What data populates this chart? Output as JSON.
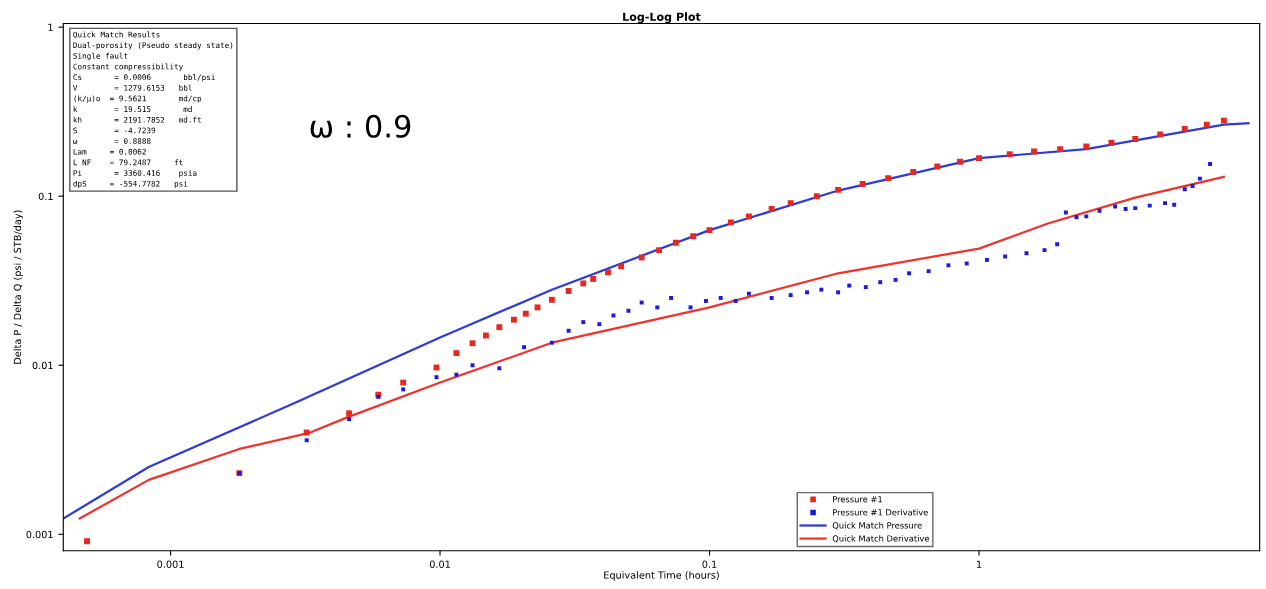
{
  "chart_data": {
    "type": "line",
    "title": "Log-Log Plot",
    "xlabel": "Equivalent Time (hours)",
    "ylabel": "Delta P / Delta Q (psi / STB/day)",
    "log": "xy",
    "xlim": [
      0.0004,
      11
    ],
    "ylim": [
      0.0008,
      1.05
    ],
    "xticks": [
      0.001,
      0.01,
      0.1,
      1
    ],
    "yticks": [
      0.001,
      0.01,
      0.1,
      1
    ],
    "grid": false,
    "legend": "bottom right",
    "series": [
      {
        "name": "Pressure #1",
        "type": "scatter",
        "marker": "square",
        "color": "#e8281e",
        "x": [
          0.00049,
          0.0018,
          0.0032,
          0.0046,
          0.0059,
          0.0073,
          0.0097,
          0.0115,
          0.0132,
          0.0148,
          0.0166,
          0.0188,
          0.0208,
          0.023,
          0.026,
          0.03,
          0.034,
          0.037,
          0.042,
          0.047,
          0.056,
          0.065,
          0.075,
          0.087,
          0.1,
          0.12,
          0.14,
          0.17,
          0.2,
          0.25,
          0.3,
          0.37,
          0.46,
          0.57,
          0.7,
          0.85,
          1,
          1.3,
          1.6,
          2,
          2.5,
          3.1,
          3.8,
          4.7,
          5.8,
          7,
          8.1
        ],
        "values": [
          0.00091,
          0.0023,
          0.004,
          0.0052,
          0.0067,
          0.0079,
          0.0097,
          0.0118,
          0.0135,
          0.015,
          0.0168,
          0.0186,
          0.0202,
          0.022,
          0.0244,
          0.0275,
          0.0305,
          0.0324,
          0.0355,
          0.0385,
          0.0434,
          0.048,
          0.053,
          0.058,
          0.063,
          0.07,
          0.076,
          0.084,
          0.091,
          0.1,
          0.109,
          0.118,
          0.128,
          0.139,
          0.15,
          0.16,
          0.168,
          0.177,
          0.184,
          0.19,
          0.197,
          0.207,
          0.218,
          0.232,
          0.25,
          0.265,
          0.28
        ]
      },
      {
        "name": "Pressure #1 Derivative",
        "type": "scatter",
        "marker": "square",
        "color": "#1a1ae0",
        "x": [
          0.0018,
          0.0032,
          0.0046,
          0.0059,
          0.0073,
          0.0097,
          0.0115,
          0.0132,
          0.0166,
          0.0205,
          0.026,
          0.03,
          0.034,
          0.039,
          0.044,
          0.05,
          0.056,
          0.064,
          0.072,
          0.085,
          0.097,
          0.11,
          0.125,
          0.14,
          0.17,
          0.2,
          0.23,
          0.26,
          0.3,
          0.33,
          0.38,
          0.43,
          0.49,
          0.55,
          0.65,
          0.77,
          0.9,
          1.07,
          1.25,
          1.5,
          1.75,
          1.95,
          2.1,
          2.3,
          2.5,
          2.8,
          3.2,
          3.5,
          3.8,
          4.3,
          4.9,
          5.3,
          5.8,
          6.2,
          6.6,
          7.2
        ],
        "values": [
          0.0023,
          0.0036,
          0.0048,
          0.0065,
          0.0072,
          0.0085,
          0.0088,
          0.01,
          0.0096,
          0.0128,
          0.0136,
          0.016,
          0.018,
          0.0175,
          0.0197,
          0.021,
          0.0235,
          0.022,
          0.025,
          0.022,
          0.024,
          0.025,
          0.024,
          0.0265,
          0.025,
          0.026,
          0.027,
          0.028,
          0.027,
          0.0296,
          0.029,
          0.031,
          0.032,
          0.035,
          0.036,
          0.039,
          0.04,
          0.042,
          0.044,
          0.046,
          0.048,
          0.052,
          0.08,
          0.075,
          0.076,
          0.082,
          0.087,
          0.084,
          0.085,
          0.088,
          0.091,
          0.089,
          0.11,
          0.115,
          0.127,
          0.155
        ]
      },
      {
        "name": "Quick Match Pressure",
        "color": "#2d3bd8",
        "x": [
          0.0004,
          0.00083,
          0.0029,
          0.01,
          0.026,
          0.1,
          0.3,
          1,
          2.5,
          8.1,
          10
        ],
        "values": [
          0.00124,
          0.0025,
          0.006,
          0.0146,
          0.028,
          0.063,
          0.108,
          0.168,
          0.19,
          0.265,
          0.27
        ]
      },
      {
        "name": "Quick Match Derivative",
        "color": "#f0322a",
        "x": [
          0.00046,
          0.00083,
          0.0018,
          0.0033,
          0.0045,
          0.01,
          0.026,
          0.1,
          0.3,
          1,
          1.8,
          3.8,
          8.1
        ],
        "values": [
          0.00124,
          0.0021,
          0.0032,
          0.004,
          0.0049,
          0.0079,
          0.0136,
          0.022,
          0.035,
          0.049,
          0.069,
          0.098,
          0.13
        ]
      }
    ],
    "annotations": [
      "Quick Match Results",
      "Dual-porosity (Pseudo steady state)",
      "Single fault",
      "Constant compressibility",
      "Cs       = 0.0006       bbl/psi",
      "V        = 1279.6153   bbl",
      "(k/μ)o  = 9.5621       md/cp",
      "k        = 19.515       md",
      "kh       = 2191.7852   md.ft",
      "S        = -4.7239",
      "ω        = 0.8888",
      "Lam     = 0.0062",
      "L NF    = 79.2487     ft",
      "Pi       = 3360.416    psia",
      "dpS     = -554.7782   psi",
      "ω : 0.9"
    ]
  }
}
